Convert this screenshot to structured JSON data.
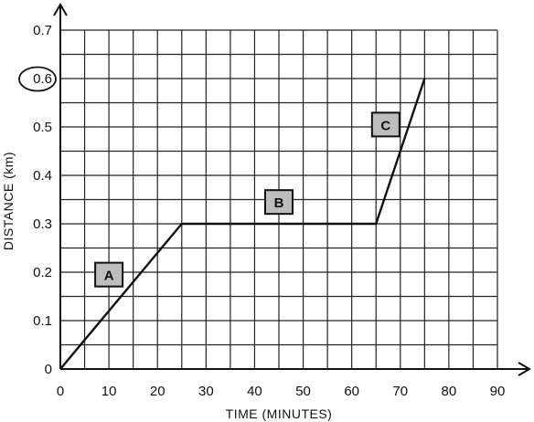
{
  "chart_data": {
    "type": "line",
    "xlabel": "TIME  (MINUTES)",
    "ylabel": "DISTANCE (km)",
    "xlim": [
      0,
      90
    ],
    "ylim": [
      0,
      0.7
    ],
    "x_ticks": [
      "0",
      "10",
      "20",
      "30",
      "40",
      "50",
      "60",
      "70",
      "80",
      "90"
    ],
    "y_ticks": [
      "0",
      "0.1",
      "0.2",
      "0.3",
      "0.4",
      "0.5",
      "0.6",
      "0.7"
    ],
    "grid": true,
    "minor_grid_step_x": 5,
    "minor_grid_step_y": 0.05,
    "circled_tick": "0.6",
    "series": [
      {
        "x": [
          0,
          25,
          65,
          75
        ],
        "y": [
          0,
          0.3,
          0.3,
          0.6
        ]
      }
    ],
    "segment_labels": [
      {
        "text": "A",
        "x": 10,
        "y": 0.195
      },
      {
        "text": "B",
        "x": 45,
        "y": 0.345
      },
      {
        "text": "C",
        "x": 67,
        "y": 0.505
      }
    ],
    "colors": {
      "line": "#111111",
      "grid": "#222222",
      "label_box": "#bdbdbd"
    }
  }
}
